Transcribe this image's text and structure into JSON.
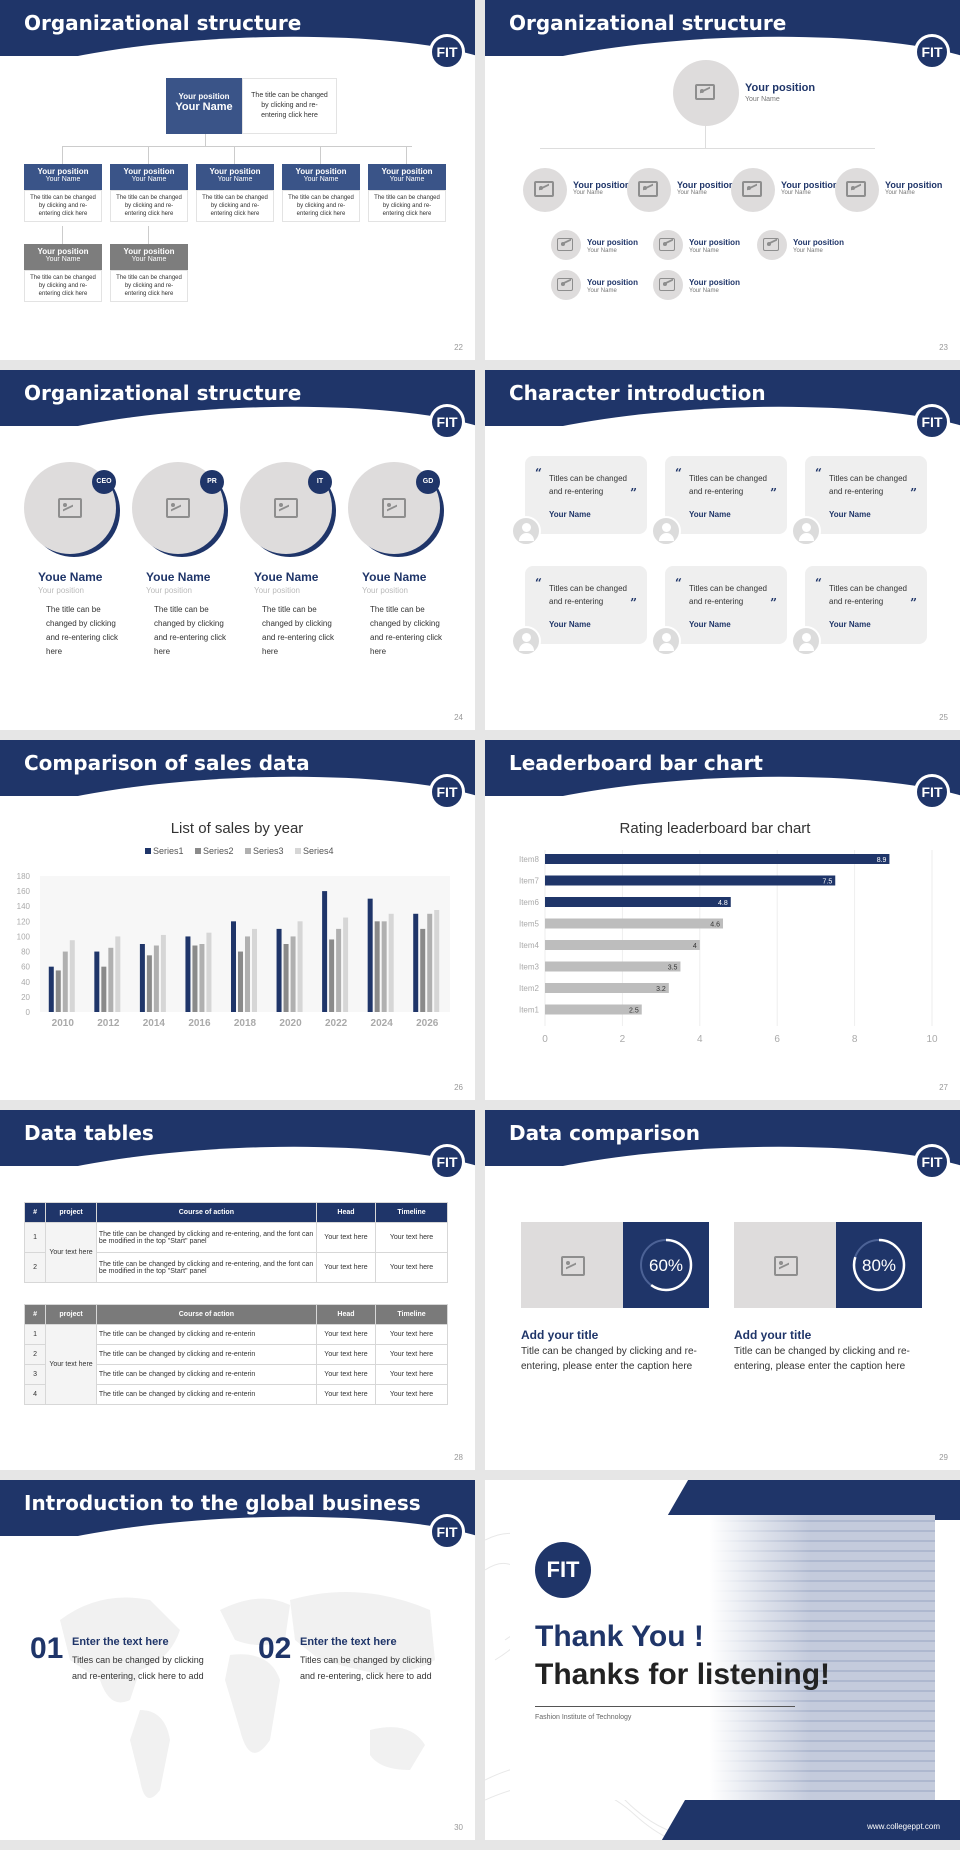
{
  "slides": [
    {
      "title": "Organizational structure",
      "page": "22"
    },
    {
      "title": "Organizational structure",
      "page": "23"
    },
    {
      "title": "Organizational structure",
      "page": "24"
    },
    {
      "title": "Character introduction",
      "page": "25"
    },
    {
      "title": "Comparison of sales data",
      "page": "26"
    },
    {
      "title": "Leaderboard bar chart",
      "page": "27"
    },
    {
      "title": "Data tables",
      "page": "28"
    },
    {
      "title": "Data comparison",
      "page": "29"
    },
    {
      "title": "Introduction to the global business",
      "page": "30"
    }
  ],
  "logo": "FIT",
  "colors": {
    "navy": "#1f3569",
    "gray": "#7d7d7d",
    "light": "#c8c8c8"
  },
  "org1": {
    "top_position": "Your position",
    "top_name": "Your Name",
    "top_caption": "The title can be changed by clicking and re-entering click here",
    "position": "Your position",
    "name": "Your Name",
    "caption": "The title can be changed by clicking and re-entering click here"
  },
  "org2": {
    "position": "Your position",
    "name": "Your Name"
  },
  "org3": {
    "badges": [
      "CEO",
      "PR",
      "IT",
      "GD"
    ],
    "name": "Youe Name",
    "position": "Your position",
    "caption": "The title can be changed by clicking and re-entering click here"
  },
  "characters": {
    "quote": "Titles can be changed and re-entering",
    "name": "Your Name"
  },
  "chart_data": [
    {
      "type": "bar",
      "title": "List of sales by year",
      "categories": [
        "2010",
        "2012",
        "2014",
        "2016",
        "2018",
        "2020",
        "2022",
        "2024",
        "2026"
      ],
      "series": [
        {
          "name": "Series1",
          "values": [
            60,
            80,
            90,
            100,
            120,
            110,
            160,
            150,
            130
          ]
        },
        {
          "name": "Series2",
          "values": [
            55,
            60,
            75,
            88,
            80,
            90,
            96,
            120,
            110
          ]
        },
        {
          "name": "Series3",
          "values": [
            80,
            85,
            88,
            90,
            100,
            100,
            110,
            120,
            130
          ]
        },
        {
          "name": "Series4",
          "values": [
            95,
            100,
            102,
            105,
            110,
            120,
            125,
            130,
            135
          ]
        }
      ],
      "ylim": [
        0,
        180
      ],
      "yticks": [
        0,
        20,
        40,
        60,
        80,
        100,
        120,
        140,
        160,
        180
      ],
      "colors": [
        "#1f3569",
        "#8a8a8a",
        "#b0b0b0",
        "#d6d6d6"
      ],
      "legend": "top"
    },
    {
      "type": "bar",
      "orientation": "horizontal",
      "title": "Rating leaderboard bar chart",
      "categories": [
        "Item8",
        "Item7",
        "Item6",
        "Item5",
        "Item4",
        "Item3",
        "Item2",
        "Item1"
      ],
      "values": [
        8.9,
        7.5,
        4.8,
        4.6,
        4,
        3.5,
        3.2,
        2.5
      ],
      "xlim": [
        0,
        10
      ],
      "xticks": [
        0,
        2,
        4,
        6,
        8,
        10
      ]
    }
  ],
  "tables": {
    "headers": [
      "#",
      "project",
      "Course of action",
      "Head",
      "Timeline"
    ],
    "t1_rows": [
      {
        "n": "1",
        "action": "The title can be changed by clicking and re-entering, and the font can be modified in the top \"Start\" panel",
        "head": "Your text here",
        "time": "Your text here"
      },
      {
        "n": "2",
        "action": "The title can be changed by clicking and re-entering, and the font can be modified in the top \"Start\" panel",
        "head": "Your text here",
        "time": "Your text here"
      }
    ],
    "t1_project": "Your text here",
    "t2_rows": [
      {
        "n": "1",
        "action": "The title can be changed by clicking and re-enterin",
        "head": "Your text here",
        "time": "Your text here"
      },
      {
        "n": "2",
        "action": "The title can be changed by clicking and re-enterin",
        "head": "Your text here",
        "time": "Your text here"
      },
      {
        "n": "3",
        "action": "The title can be changed by clicking and re-enterin",
        "head": "Your text here",
        "time": "Your text here"
      },
      {
        "n": "4",
        "action": "The title can be changed by clicking and re-enterin",
        "head": "Your text here",
        "time": "Your text here"
      }
    ],
    "t2_project": "Your text here"
  },
  "comparison": [
    {
      "percent": 60,
      "label": "60%",
      "title": "Add your title",
      "caption": "Title can be changed by clicking and re-entering, please enter the caption here"
    },
    {
      "percent": 80,
      "label": "80%",
      "title": "Add your title",
      "caption": "Title can be changed by clicking and re-entering, please enter the caption here"
    }
  ],
  "global": [
    {
      "num": "01",
      "title": "Enter the text here",
      "caption": "Titles can be changed by clicking and re-entering, click here to add"
    },
    {
      "num": "02",
      "title": "Enter the text here",
      "caption": "Titles can be changed by clicking and re-entering, click here to add"
    }
  ],
  "thanks": {
    "line1": "Thank You !",
    "line2": "Thanks for listening!",
    "institute": "Fashion Institute of Technology",
    "website": "www.collegeppt.com"
  }
}
